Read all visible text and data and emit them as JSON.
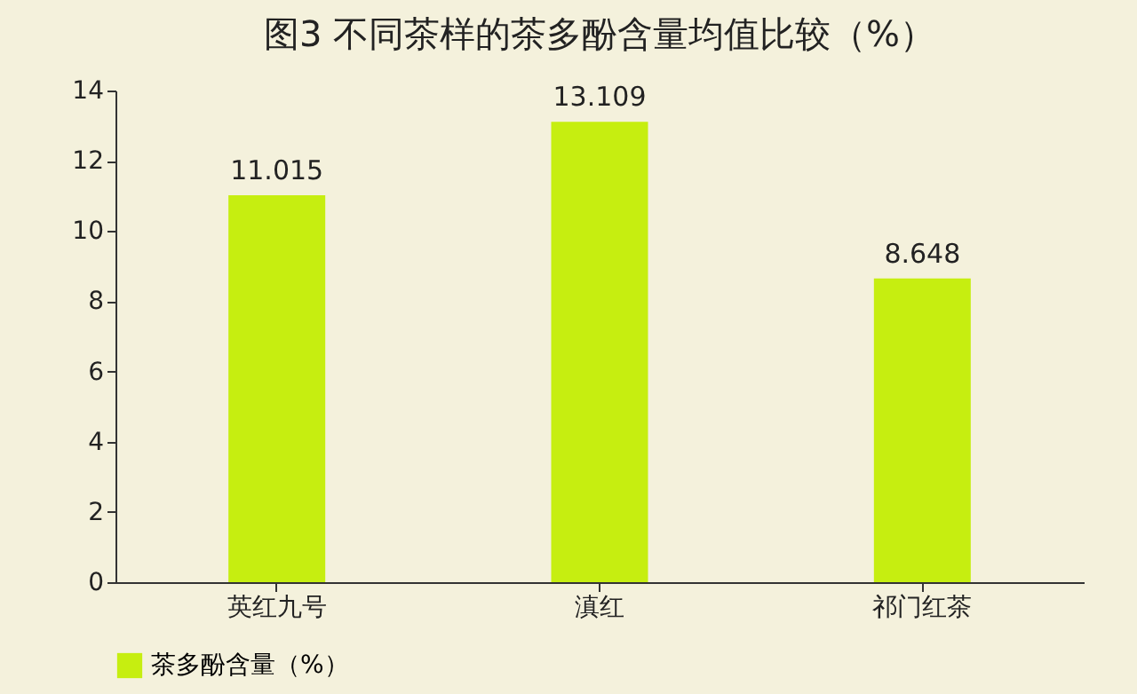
{
  "chart_data": {
    "type": "bar",
    "title": "图3 不同茶样的茶多酚含量均值比较（%）",
    "categories": [
      "英红九号",
      "滇红",
      "祁门红茶"
    ],
    "series": [
      {
        "name": "茶多酚含量（%）",
        "color": "#c6ee10",
        "values": [
          11.015,
          13.109,
          8.648
        ]
      }
    ],
    "ylim": [
      0,
      14
    ],
    "yticks": [
      0,
      2,
      4,
      6,
      8,
      10,
      12,
      14
    ],
    "data_labels": true,
    "grid": false,
    "legend": "bottom"
  }
}
